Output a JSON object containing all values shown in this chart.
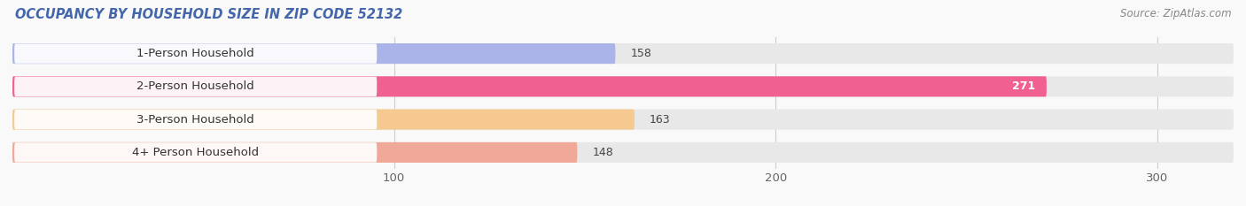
{
  "title": "OCCUPANCY BY HOUSEHOLD SIZE IN ZIP CODE 52132",
  "source": "Source: ZipAtlas.com",
  "categories": [
    "1-Person Household",
    "2-Person Household",
    "3-Person Household",
    "4+ Person Household"
  ],
  "values": [
    158,
    271,
    163,
    148
  ],
  "bar_colors": [
    "#aab4e8",
    "#f06090",
    "#f5c990",
    "#f0a898"
  ],
  "bar_bg_color": "#e8e8e8",
  "label_box_color": "#ffffff",
  "xlim": [
    0,
    320
  ],
  "xticks": [
    100,
    200,
    300
  ],
  "figsize": [
    14.06,
    2.33
  ],
  "dpi": 100,
  "background_color": "#f9f9f9",
  "label_fontsize": 9.5,
  "value_fontsize": 9,
  "title_fontsize": 10.5,
  "source_fontsize": 8.5,
  "title_color": "#4466aa",
  "label_color": "#333333",
  "source_color": "#888888"
}
